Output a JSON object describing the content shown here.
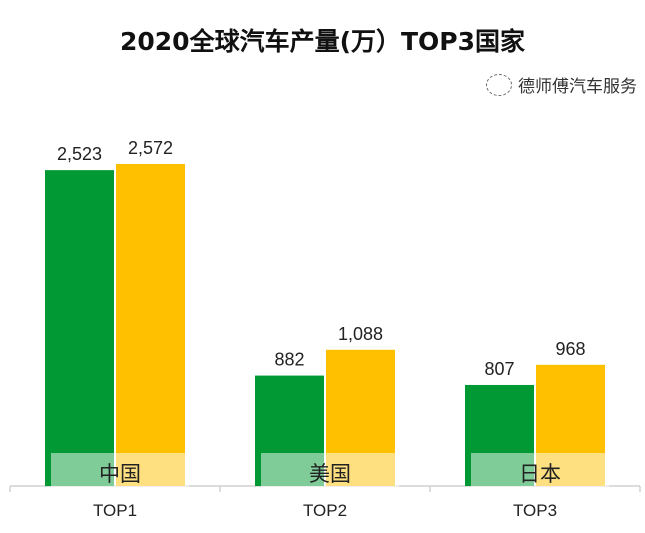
{
  "chart_data": {
    "type": "bar",
    "title": "2020全球汽车产量(万）TOP3国家",
    "categories": [
      "TOP1",
      "TOP2",
      "TOP3"
    ],
    "country_labels": [
      "中国",
      "美国",
      "日本"
    ],
    "series": [
      {
        "name": "series-1",
        "color": "#009933",
        "values": [
          2523,
          882,
          807
        ],
        "labels": [
          "2,523",
          "882",
          "807"
        ]
      },
      {
        "name": "series-2",
        "color": "#FFC000",
        "values": [
          2572,
          1088,
          968
        ],
        "labels": [
          "2,572",
          "1,088",
          "968"
        ]
      }
    ],
    "xlabel": "",
    "ylabel": "",
    "ylim": [
      0,
      2572
    ],
    "grid": false,
    "legend": "none"
  },
  "watermark": "德师傅汽车服务"
}
